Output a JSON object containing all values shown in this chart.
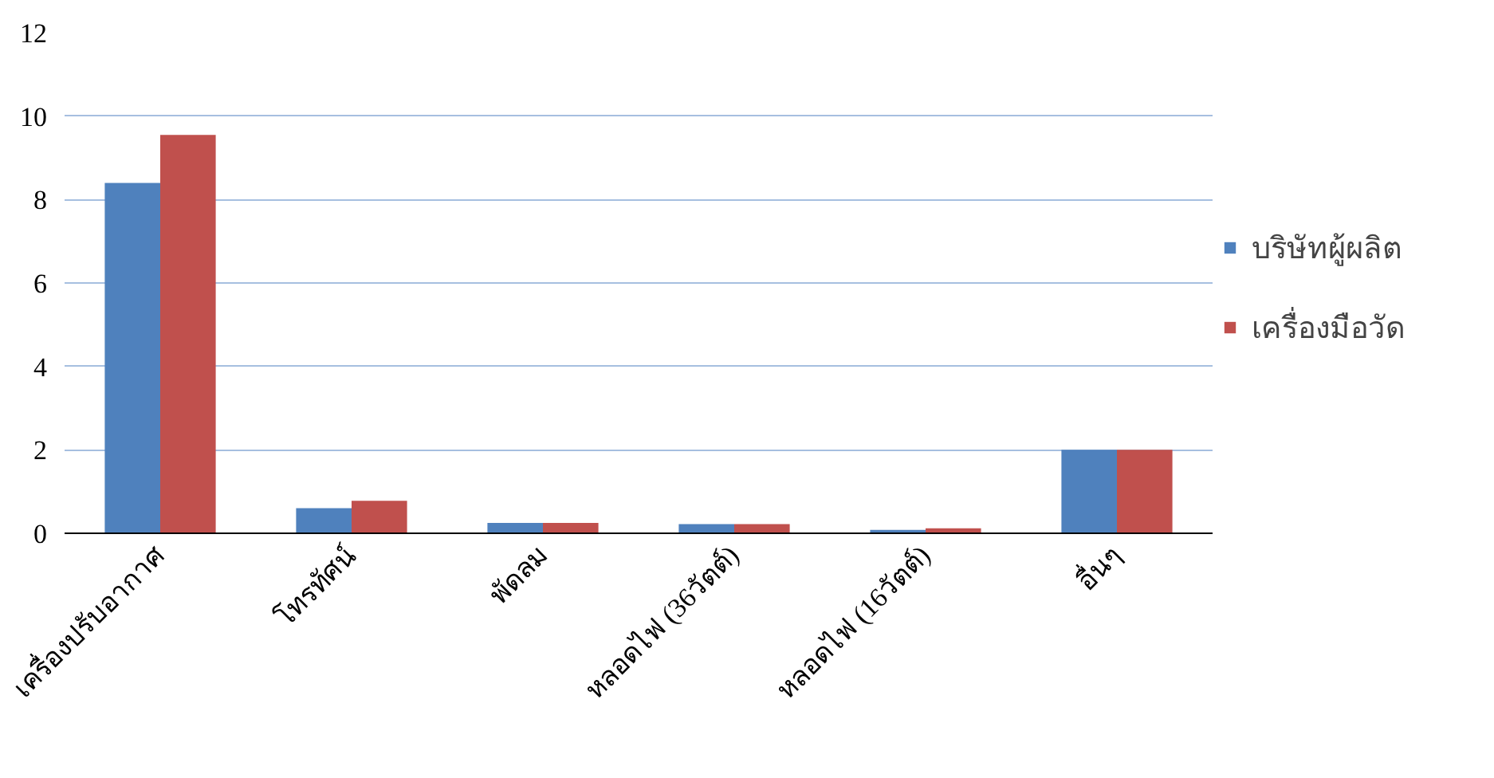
{
  "chart_data": {
    "type": "bar",
    "categories": [
      "เครื่องปรับอากาศ",
      "โทรทัศน์",
      "พัดลม",
      "หลอดไฟ (36วัตต์)",
      "หลอดไฟ (16วัตต์)",
      "อื่นๆ"
    ],
    "series": [
      {
        "name": "บริษัทผู้ผลิต",
        "color": "#4f81bd",
        "values": [
          8.4,
          0.6,
          0.25,
          0.22,
          0.08,
          2
        ]
      },
      {
        "name": "เครื่องมือวัด",
        "color": "#c0504d",
        "values": [
          9.55,
          0.78,
          0.25,
          0.22,
          0.12,
          2
        ]
      }
    ],
    "ylim": [
      0,
      12
    ],
    "yticks": [
      0,
      2,
      4,
      6,
      8,
      10,
      12
    ],
    "grid": "y",
    "legend": "right"
  }
}
